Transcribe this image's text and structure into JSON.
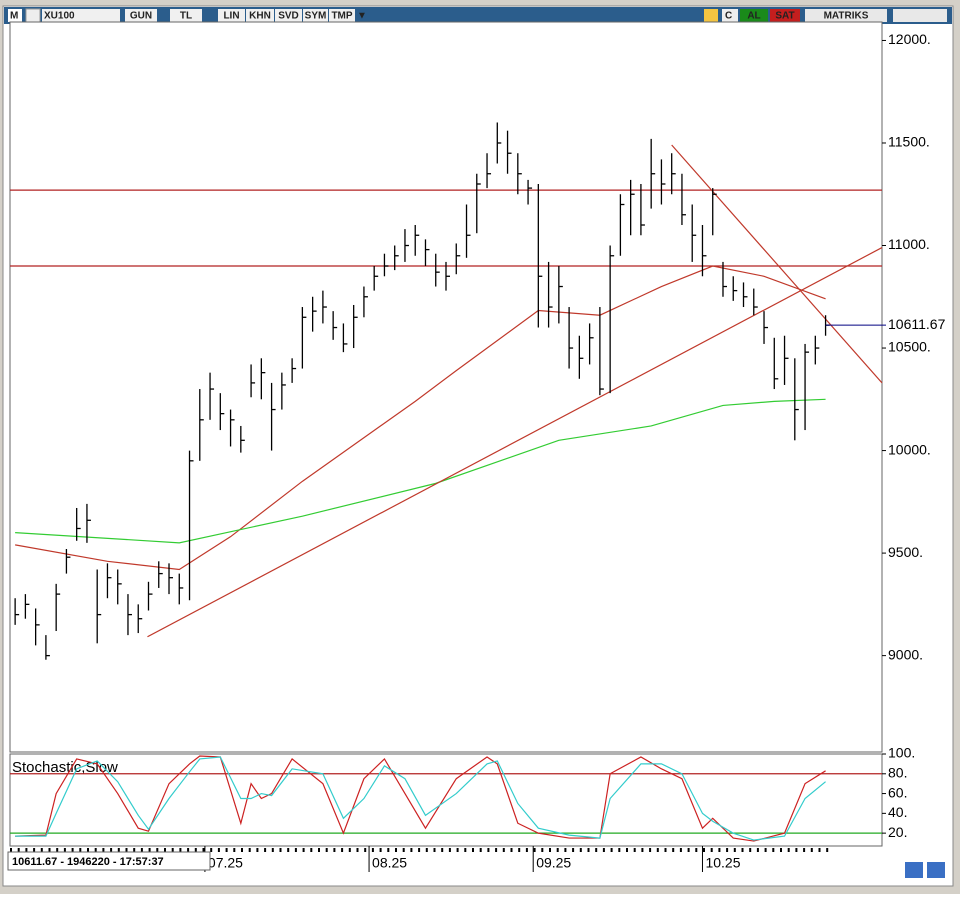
{
  "toolbar": {
    "icon": "M",
    "symbol": "XU100",
    "buttons": [
      "GUN",
      "TL",
      "LIN",
      "KHN",
      "SVD",
      "SYM",
      "TMP"
    ],
    "c": "C",
    "buy": "AL",
    "sell": "SAT",
    "brand": "MATRIKS"
  },
  "status": "10611.67 - 1946220 - 17:57:37",
  "chart_data": [
    {
      "type": "ohlc",
      "color": "#000000",
      "xlim": [
        -0.5,
        84.5
      ],
      "ylim": [
        8530,
        12090
      ],
      "xticks": [
        {
          "value": 18.5,
          "label": "07.25"
        },
        {
          "value": 34.5,
          "label": "08.25"
        },
        {
          "value": 50.5,
          "label": "09.25"
        },
        {
          "value": 67,
          "label": "10.25"
        }
      ],
      "yticks": [
        {
          "value": 9000,
          "label": "9000."
        },
        {
          "value": 9500,
          "label": "9500."
        },
        {
          "value": 10000,
          "label": "10000."
        },
        {
          "value": 10500,
          "label": "10500."
        },
        {
          "value": 11000,
          "label": "11000."
        },
        {
          "value": 11500,
          "label": "11500."
        },
        {
          "value": 12000,
          "label": "12000."
        }
      ],
      "close": [
        9200,
        9250,
        9150,
        9000,
        9300,
        9480,
        9620,
        9660,
        9200,
        9380,
        9350,
        9200,
        9180,
        9300,
        9400,
        9380,
        9330,
        9950,
        10150,
        10300,
        10180,
        10150,
        10050,
        10330,
        10380,
        10200,
        10320,
        10400,
        10650,
        10680,
        10700,
        10600,
        10520,
        10650,
        10750,
        10850,
        10900,
        10950,
        11000,
        11050,
        10980,
        10870,
        10850,
        10950,
        11050,
        11300,
        11350,
        11500,
        11450,
        11350,
        11280,
        10850,
        10700,
        10800,
        10500,
        10450,
        10550,
        10300,
        10950,
        11200,
        11250,
        11100,
        11350,
        11300,
        11350,
        11150,
        11050,
        10950,
        11250,
        10800,
        10780,
        10750,
        10700,
        10600,
        10350,
        10450,
        10200,
        10480,
        10500,
        10611.67
      ],
      "high": [
        9280,
        9300,
        9230,
        9100,
        9350,
        9520,
        9720,
        9740,
        9420,
        9450,
        9420,
        9300,
        9250,
        9360,
        9460,
        9450,
        9400,
        10000,
        10300,
        10380,
        10280,
        10200,
        10120,
        10420,
        10450,
        10330,
        10380,
        10450,
        10700,
        10750,
        10780,
        10680,
        10620,
        10710,
        10800,
        10900,
        10960,
        11000,
        11080,
        11100,
        11030,
        10960,
        10920,
        11010,
        11200,
        11350,
        11450,
        11600,
        11560,
        11450,
        11320,
        11300,
        10920,
        10900,
        10700,
        10560,
        10620,
        10700,
        11000,
        11250,
        11320,
        11300,
        11520,
        11420,
        11450,
        11350,
        11200,
        11100,
        11280,
        10920,
        10850,
        10820,
        10790,
        10680,
        10550,
        10560,
        10450,
        10520,
        10560,
        10660
      ],
      "low": [
        9150,
        9180,
        9050,
        8980,
        9120,
        9400,
        9560,
        9550,
        9060,
        9280,
        9250,
        9100,
        9110,
        9220,
        9330,
        9300,
        9250,
        9270,
        9950,
        10150,
        10100,
        10020,
        9990,
        10260,
        10250,
        10000,
        10200,
        10330,
        10400,
        10580,
        10620,
        10540,
        10480,
        10500,
        10650,
        10780,
        10850,
        10880,
        10920,
        10950,
        10900,
        10800,
        10780,
        10860,
        10940,
        11060,
        11280,
        11400,
        11350,
        11250,
        11200,
        10600,
        10600,
        10620,
        10400,
        10350,
        10420,
        10270,
        10280,
        10950,
        11050,
        11050,
        11180,
        11200,
        11250,
        11100,
        10920,
        10850,
        11050,
        10750,
        10730,
        10700,
        10660,
        10520,
        10300,
        10320,
        10050,
        10100,
        10420,
        10560
      ],
      "lines": [
        {
          "color": "#c0392b",
          "x": [
            0,
            9,
            16,
            21,
            28,
            39,
            43,
            51,
            57,
            63,
            68,
            73,
            79
          ],
          "values": [
            9540,
            9460,
            9420,
            9580,
            9850,
            10240,
            10390,
            10683,
            10660,
            10800,
            10900,
            10850,
            10740
          ]
        },
        {
          "color": "#33cc33",
          "x": [
            0,
            16,
            28,
            41,
            53,
            62,
            69,
            74,
            79
          ],
          "values": [
            9600,
            9550,
            9680,
            9840,
            10050,
            10120,
            10220,
            10240,
            10250
          ]
        }
      ],
      "trendlines": [
        {
          "color": "#c0392b",
          "x": [
            12.9,
            84.5
          ],
          "values": [
            9092,
            10990
          ]
        },
        {
          "color": "#c0392b",
          "x": [
            64,
            84.5
          ],
          "values": [
            11490,
            10330
          ]
        }
      ],
      "hlines": [
        11270,
        10900
      ],
      "hline_color": "#b22222",
      "last_color": "#000080"
    },
    {
      "type": "line",
      "title": "Stochastic,Slow",
      "xlim": [
        -0.5,
        84.5
      ],
      "ylim": [
        7,
        100
      ],
      "yticks": [
        {
          "value": 20,
          "label": "20."
        },
        {
          "value": 40,
          "label": "40."
        },
        {
          "value": 60,
          "label": "60."
        },
        {
          "value": 80,
          "label": "80."
        },
        {
          "value": 100,
          "label": "100."
        }
      ],
      "levels": [
        {
          "value": 80,
          "color": "#b22222"
        },
        {
          "value": 20,
          "color": "#22aa22"
        }
      ],
      "series": [
        {
          "color": "#cc2222",
          "x": [
            0,
            3,
            4,
            6,
            8,
            10,
            12,
            13,
            15,
            17,
            18,
            20,
            22,
            23,
            24,
            25,
            27,
            30,
            32,
            34,
            36,
            38,
            40,
            43,
            46,
            47,
            49,
            51,
            54,
            57,
            58,
            61,
            63,
            65,
            67,
            68,
            70,
            72,
            75,
            77,
            79
          ],
          "values": [
            17,
            18,
            60,
            95,
            90,
            60,
            25,
            22,
            70,
            90,
            98,
            97,
            30,
            70,
            55,
            60,
            95,
            70,
            20,
            75,
            95,
            60,
            25,
            75,
            97,
            90,
            30,
            20,
            15,
            15,
            80,
            97,
            85,
            75,
            25,
            35,
            15,
            12,
            20,
            70,
            83
          ]
        },
        {
          "color": "#33cccc",
          "x": [
            0,
            3,
            4,
            6,
            8,
            10,
            12,
            13,
            15,
            17,
            18,
            20,
            22,
            23,
            24,
            25,
            27,
            30,
            32,
            34,
            36,
            38,
            40,
            43,
            46,
            47,
            49,
            51,
            54,
            57,
            58,
            61,
            63,
            65,
            67,
            68,
            70,
            72,
            75,
            77,
            79
          ],
          "values": [
            17,
            17,
            40,
            85,
            93,
            72,
            38,
            24,
            55,
            82,
            95,
            97,
            55,
            55,
            60,
            58,
            85,
            80,
            35,
            55,
            88,
            75,
            38,
            60,
            90,
            93,
            50,
            25,
            18,
            15,
            55,
            90,
            90,
            80,
            40,
            32,
            20,
            13,
            17,
            55,
            72
          ]
        }
      ]
    }
  ]
}
